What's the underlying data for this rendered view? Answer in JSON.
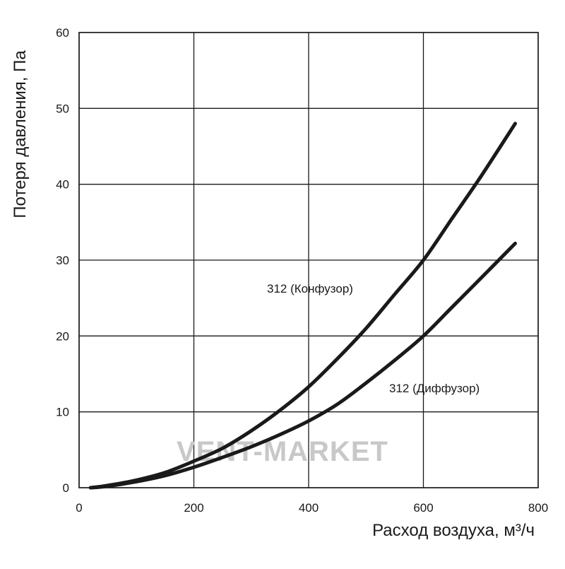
{
  "chart_data": {
    "type": "line",
    "xlabel": "Расход воздуха, м³/ч",
    "ylabel": "Потеря давления, Па",
    "xlim": [
      0,
      800
    ],
    "ylim": [
      0,
      60
    ],
    "x_ticks": [
      0,
      200,
      400,
      600,
      800
    ],
    "y_ticks": [
      0,
      10,
      20,
      30,
      40,
      50,
      60
    ],
    "grid": true,
    "series": [
      {
        "name": "312 (Конфузор)",
        "x": [
          20,
          50,
          100,
          150,
          200,
          250,
          300,
          350,
          400,
          450,
          500,
          550,
          600,
          650,
          700,
          760
        ],
        "values": [
          0,
          0.3,
          1.0,
          2.0,
          3.5,
          5.2,
          7.5,
          10.2,
          13.3,
          17.0,
          21.0,
          25.5,
          30.0,
          35.5,
          41.0,
          48.0
        ]
      },
      {
        "name": "312 (Диффузор)",
        "x": [
          20,
          50,
          100,
          150,
          200,
          250,
          300,
          350,
          400,
          450,
          500,
          550,
          600,
          650,
          700,
          760
        ],
        "values": [
          0,
          0.2,
          0.8,
          1.6,
          2.7,
          4.0,
          5.4,
          7.0,
          8.8,
          11.0,
          13.8,
          16.8,
          20.0,
          23.8,
          27.6,
          32.2
        ]
      }
    ],
    "watermark": "VENT-MARKET"
  }
}
